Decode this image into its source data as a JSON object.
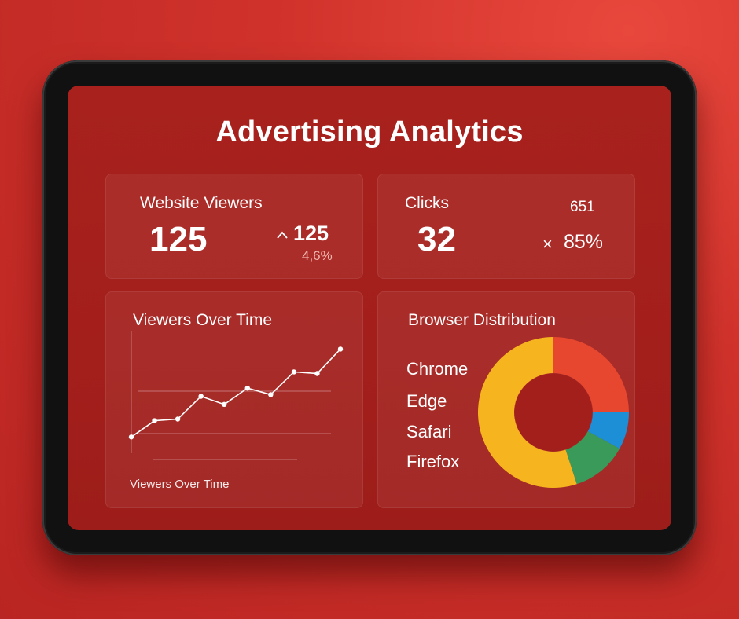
{
  "title": "Advertising Analytics",
  "website_viewers": {
    "label": "Website Viewers",
    "value": "125",
    "change_arrow": "^",
    "change_value": "125",
    "change_percent": "4,6%"
  },
  "clicks": {
    "label": "Clicks",
    "value": "32",
    "top_value": "651",
    "rate_icon": "×",
    "rate": "85%"
  },
  "viewers_chart": {
    "card_title": "Viewers Over Time",
    "caption": "Viewers Over Time"
  },
  "browser_chart": {
    "card_title": "Browser Distribution",
    "legend": [
      "Chrome",
      "Edge",
      "Safari",
      "Firefox"
    ]
  },
  "chart_data": [
    {
      "type": "line",
      "title": "Viewers Over Time",
      "xlabel": "",
      "ylabel": "",
      "y": [
        1,
        2,
        2.1,
        3.5,
        3,
        4,
        3.6,
        5,
        4.9,
        6.4
      ],
      "ylim": [
        0,
        7
      ],
      "grid": true,
      "color": "#ffffff"
    },
    {
      "type": "pie",
      "title": "Browser Distribution",
      "categories": [
        "Chrome",
        "Edge",
        "Safari",
        "Firefox"
      ],
      "values": [
        25,
        8,
        12,
        55
      ],
      "colors": [
        "#e8472f",
        "#1c8fd6",
        "#3a9a5a",
        "#f6b51e"
      ],
      "donut": true
    }
  ]
}
